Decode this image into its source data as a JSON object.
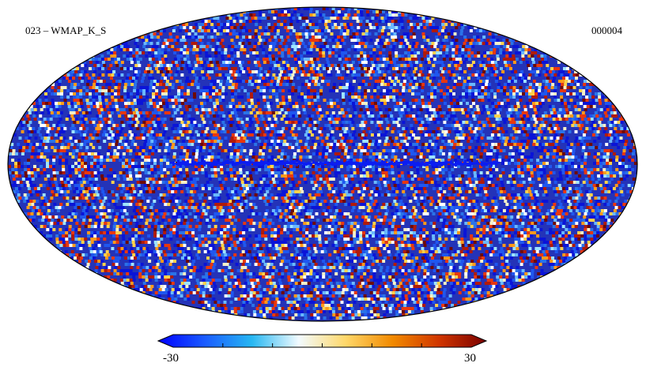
{
  "map": {
    "title": "023 – WMAP_K_S",
    "id": "000004",
    "projection": "mollweide",
    "noise_palette": [
      "#0a14d8",
      "#1f57f0",
      "#2a73e8",
      "#6ab9ff",
      "#9fe4ff",
      "#f5f1c8",
      "#ffd24a",
      "#ff9a1a",
      "#e8370f",
      "#b01a0a",
      "#6e0a05",
      "#ffffff"
    ],
    "background_color": "#2433b8",
    "galactic_plane_color": "#0b1df2"
  },
  "colorbar": {
    "min_label": "-30",
    "max_label": "30",
    "gradient": [
      "#0000ff",
      "#1a5cff",
      "#27b7f2",
      "#f2fbff",
      "#ffd86a",
      "#f28a00",
      "#d03500",
      "#7a0000"
    ]
  }
}
